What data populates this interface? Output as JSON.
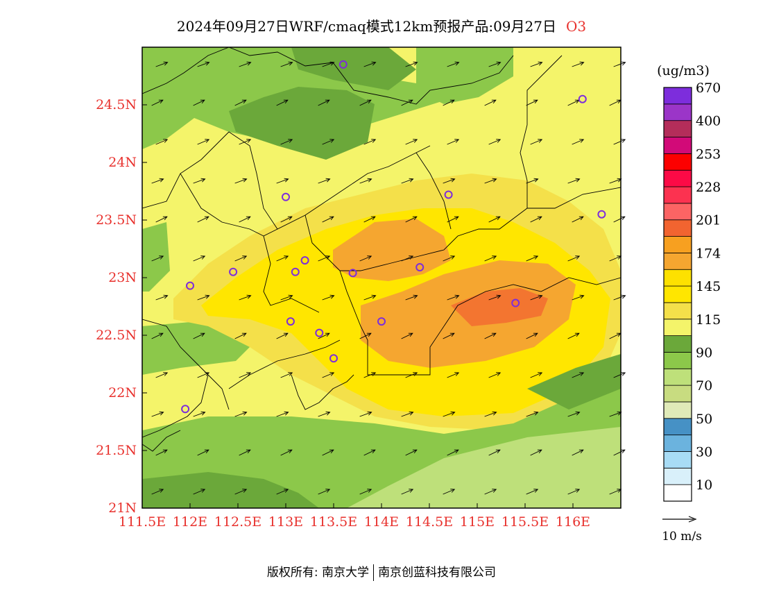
{
  "title": {
    "text": "2024年09月27日WRF/cmaq模式12km预报产品:09月27日",
    "species": "O3"
  },
  "map": {
    "lon_labels": [
      "111.5E",
      "112E",
      "112.5E",
      "113E",
      "113.5E",
      "114E",
      "114.5E",
      "115E",
      "115.5E",
      "116E"
    ],
    "lat_labels": [
      "21N",
      "21.5N",
      "22N",
      "22.5N",
      "23N",
      "23.5N",
      "24N",
      "24.5N"
    ],
    "axis_label_color": "#e8312d",
    "stations": [
      [
        113.6,
        24.85
      ],
      [
        116.1,
        24.55
      ],
      [
        113.0,
        23.7
      ],
      [
        114.7,
        23.72
      ],
      [
        116.3,
        23.55
      ],
      [
        113.2,
        23.15
      ],
      [
        112.45,
        23.05
      ],
      [
        113.1,
        23.05
      ],
      [
        113.7,
        23.04
      ],
      [
        114.4,
        23.09
      ],
      [
        112.0,
        22.93
      ],
      [
        115.4,
        22.78
      ],
      [
        113.05,
        22.62
      ],
      [
        113.35,
        22.52
      ],
      [
        114.0,
        22.62
      ],
      [
        113.5,
        22.3
      ],
      [
        111.95,
        21.86
      ]
    ]
  },
  "legend": {
    "unit": "(ug/m3)",
    "colors": [
      "#ffffff",
      "#d9f0fa",
      "#a8dcf5",
      "#6bb3de",
      "#4691c5",
      "#e0eab8",
      "#c8dc80",
      "#bee07a",
      "#8cc84a",
      "#6ba83a",
      "#f4f46a",
      "#f4e04a",
      "#ffe600",
      "#fde100",
      "#f5a630",
      "#f7a020",
      "#f26430",
      "#fc6464",
      "#fc3250",
      "#fc0a46",
      "#fc0000",
      "#d20a78",
      "#b42d5a",
      "#9b35c8",
      "#7d2ddc"
    ],
    "labels": [
      "10",
      "30",
      "50",
      "70",
      "90",
      "115",
      "145",
      "174",
      "201",
      "228",
      "253",
      "400",
      "670"
    ]
  },
  "wind_scale": {
    "label": "10 m/s"
  },
  "footer": {
    "left": "版权所有: 南京大学",
    "right": "南京创蓝科技有限公司"
  }
}
